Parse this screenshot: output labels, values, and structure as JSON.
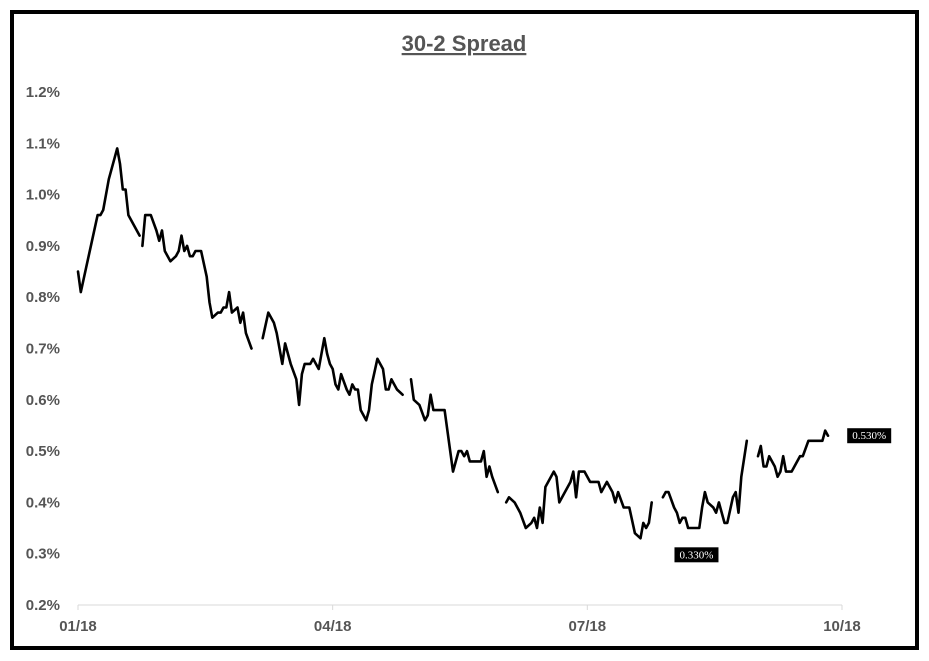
{
  "chart_data": {
    "type": "line",
    "title": "30-2 Spread",
    "xlabel": "",
    "ylabel": "",
    "ylim": [
      0.2,
      1.2
    ],
    "y_tick_labels": [
      "0.2%",
      "0.3%",
      "0.4%",
      "0.5%",
      "0.6%",
      "0.7%",
      "0.8%",
      "0.9%",
      "1.0%",
      "1.1%",
      "1.2%"
    ],
    "x_tick_labels": [
      "01/18",
      "04/18",
      "07/18",
      "10/18"
    ],
    "xlim": [
      "2018-01-01",
      "2018-10-01"
    ],
    "grid": false,
    "legend": "none",
    "line_color": "#000000",
    "axis_color": "#d9d9d9",
    "text_color": "#555555",
    "data_label_bg": "#000000",
    "data_labels": [
      {
        "date": "2018-08-10",
        "value": 0.33,
        "text": "0.330%"
      },
      {
        "date": "2018-09-30",
        "value": 0.53,
        "text": "0.530%"
      }
    ],
    "series": [
      {
        "segments": [
          [
            [
              "2018-01-01",
              0.85
            ],
            [
              "2018-01-02",
              0.81
            ],
            [
              "2018-01-04",
              0.86
            ],
            [
              "2018-01-06",
              0.91
            ],
            [
              "2018-01-08",
              0.96
            ],
            [
              "2018-01-09",
              0.96
            ],
            [
              "2018-01-10",
              0.97
            ],
            [
              "2018-01-12",
              1.03
            ],
            [
              "2018-01-14",
              1.07
            ],
            [
              "2018-01-15",
              1.09
            ],
            [
              "2018-01-16",
              1.06
            ],
            [
              "2018-01-17",
              1.01
            ],
            [
              "2018-01-18",
              1.01
            ],
            [
              "2018-01-19",
              0.96
            ],
            [
              "2018-01-21",
              0.94
            ],
            [
              "2018-01-23",
              0.92
            ]
          ],
          [
            [
              "2018-01-24",
              0.9
            ],
            [
              "2018-01-25",
              0.96
            ],
            [
              "2018-01-27",
              0.96
            ],
            [
              "2018-01-29",
              0.93
            ],
            [
              "2018-01-30",
              0.91
            ],
            [
              "2018-01-31",
              0.93
            ],
            [
              "2018-02-01",
              0.89
            ],
            [
              "2018-02-03",
              0.87
            ],
            [
              "2018-02-05",
              0.88
            ],
            [
              "2018-02-06",
              0.89
            ],
            [
              "2018-02-07",
              0.92
            ],
            [
              "2018-02-08",
              0.89
            ],
            [
              "2018-02-09",
              0.9
            ],
            [
              "2018-02-10",
              0.88
            ],
            [
              "2018-02-11",
              0.88
            ],
            [
              "2018-02-12",
              0.89
            ],
            [
              "2018-02-14",
              0.89
            ],
            [
              "2018-02-16",
              0.84
            ],
            [
              "2018-02-17",
              0.79
            ],
            [
              "2018-02-18",
              0.76
            ],
            [
              "2018-02-20",
              0.77
            ],
            [
              "2018-02-21",
              0.77
            ],
            [
              "2018-02-22",
              0.78
            ],
            [
              "2018-02-23",
              0.78
            ],
            [
              "2018-02-24",
              0.81
            ],
            [
              "2018-02-25",
              0.77
            ],
            [
              "2018-02-27",
              0.78
            ],
            [
              "2018-02-28",
              0.75
            ],
            [
              "2018-03-01",
              0.77
            ],
            [
              "2018-03-02",
              0.73
            ],
            [
              "2018-03-04",
              0.7
            ]
          ],
          [
            [
              "2018-03-08",
              0.72
            ],
            [
              "2018-03-10",
              0.77
            ],
            [
              "2018-03-12",
              0.75
            ],
            [
              "2018-03-13",
              0.73
            ],
            [
              "2018-03-15",
              0.67
            ],
            [
              "2018-03-16",
              0.71
            ],
            [
              "2018-03-18",
              0.67
            ],
            [
              "2018-03-20",
              0.64
            ],
            [
              "2018-03-21",
              0.59
            ],
            [
              "2018-03-22",
              0.65
            ],
            [
              "2018-03-23",
              0.67
            ],
            [
              "2018-03-25",
              0.67
            ],
            [
              "2018-03-26",
              0.68
            ],
            [
              "2018-03-27",
              0.67
            ],
            [
              "2018-03-28",
              0.66
            ],
            [
              "2018-03-30",
              0.72
            ],
            [
              "2018-03-31",
              0.69
            ],
            [
              "2018-04-01",
              0.67
            ],
            [
              "2018-04-02",
              0.66
            ],
            [
              "2018-04-03",
              0.63
            ],
            [
              "2018-04-04",
              0.62
            ],
            [
              "2018-04-05",
              0.65
            ],
            [
              "2018-04-07",
              0.62
            ],
            [
              "2018-04-08",
              0.61
            ],
            [
              "2018-04-09",
              0.63
            ],
            [
              "2018-04-10",
              0.62
            ],
            [
              "2018-04-11",
              0.62
            ],
            [
              "2018-04-12",
              0.58
            ],
            [
              "2018-04-14",
              0.56
            ],
            [
              "2018-04-15",
              0.58
            ],
            [
              "2018-04-16",
              0.63
            ],
            [
              "2018-04-18",
              0.68
            ],
            [
              "2018-04-20",
              0.66
            ],
            [
              "2018-04-21",
              0.62
            ],
            [
              "2018-04-22",
              0.62
            ],
            [
              "2018-04-23",
              0.64
            ],
            [
              "2018-04-25",
              0.62
            ],
            [
              "2018-04-27",
              0.61
            ]
          ],
          [
            [
              "2018-04-30",
              0.64
            ],
            [
              "2018-05-01",
              0.6
            ],
            [
              "2018-05-03",
              0.59
            ],
            [
              "2018-05-05",
              0.56
            ],
            [
              "2018-05-06",
              0.57
            ],
            [
              "2018-05-07",
              0.61
            ],
            [
              "2018-05-08",
              0.58
            ],
            [
              "2018-05-10",
              0.58
            ],
            [
              "2018-05-12",
              0.58
            ],
            [
              "2018-05-14",
              0.5
            ],
            [
              "2018-05-15",
              0.46
            ],
            [
              "2018-05-16",
              0.48
            ],
            [
              "2018-05-17",
              0.5
            ],
            [
              "2018-05-18",
              0.5
            ],
            [
              "2018-05-19",
              0.49
            ],
            [
              "2018-05-20",
              0.5
            ],
            [
              "2018-05-21",
              0.48
            ],
            [
              "2018-05-23",
              0.48
            ],
            [
              "2018-05-25",
              0.48
            ],
            [
              "2018-05-26",
              0.5
            ],
            [
              "2018-05-27",
              0.45
            ],
            [
              "2018-05-28",
              0.47
            ],
            [
              "2018-05-29",
              0.45
            ],
            [
              "2018-05-31",
              0.42
            ]
          ],
          [
            [
              "2018-06-01",
              0.43
            ]
          ],
          [
            [
              "2018-06-03",
              0.4
            ],
            [
              "2018-06-04",
              0.41
            ],
            [
              "2018-06-06",
              0.4
            ],
            [
              "2018-06-08",
              0.38
            ],
            [
              "2018-06-10",
              0.35
            ],
            [
              "2018-06-12",
              0.36
            ],
            [
              "2018-06-13",
              0.37
            ],
            [
              "2018-06-14",
              0.35
            ],
            [
              "2018-06-15",
              0.39
            ],
            [
              "2018-06-16",
              0.36
            ],
            [
              "2018-06-17",
              0.43
            ],
            [
              "2018-06-18",
              0.44
            ],
            [
              "2018-06-20",
              0.46
            ],
            [
              "2018-06-21",
              0.45
            ],
            [
              "2018-06-22",
              0.4
            ],
            [
              "2018-06-24",
              0.42
            ],
            [
              "2018-06-26",
              0.44
            ],
            [
              "2018-06-27",
              0.46
            ],
            [
              "2018-06-28",
              0.41
            ],
            [
              "2018-06-29",
              0.46
            ],
            [
              "2018-07-01",
              0.46
            ],
            [
              "2018-07-03",
              0.44
            ],
            [
              "2018-07-05",
              0.44
            ],
            [
              "2018-07-06",
              0.44
            ],
            [
              "2018-07-07",
              0.42
            ],
            [
              "2018-07-08",
              0.43
            ],
            [
              "2018-07-09",
              0.44
            ],
            [
              "2018-07-11",
              0.42
            ],
            [
              "2018-07-12",
              0.4
            ],
            [
              "2018-07-13",
              0.42
            ],
            [
              "2018-07-15",
              0.39
            ],
            [
              "2018-07-17",
              0.39
            ],
            [
              "2018-07-19",
              0.34
            ],
            [
              "2018-07-21",
              0.33
            ],
            [
              "2018-07-22",
              0.36
            ],
            [
              "2018-07-23",
              0.35
            ],
            [
              "2018-07-24",
              0.36
            ],
            [
              "2018-07-25",
              0.4
            ]
          ],
          [
            [
              "2018-07-29",
              0.41
            ],
            [
              "2018-07-30",
              0.42
            ],
            [
              "2018-07-31",
              0.42
            ],
            [
              "2018-08-02",
              0.39
            ],
            [
              "2018-08-03",
              0.38
            ],
            [
              "2018-08-04",
              0.36
            ],
            [
              "2018-08-05",
              0.37
            ],
            [
              "2018-08-06",
              0.37
            ],
            [
              "2018-08-07",
              0.35
            ],
            [
              "2018-08-09",
              0.35
            ],
            [
              "2018-08-11",
              0.35
            ],
            [
              "2018-08-12",
              0.39
            ],
            [
              "2018-08-13",
              0.42
            ],
            [
              "2018-08-14",
              0.4
            ],
            [
              "2018-08-16",
              0.39
            ],
            [
              "2018-08-17",
              0.38
            ],
            [
              "2018-08-18",
              0.4
            ],
            [
              "2018-08-20",
              0.36
            ],
            [
              "2018-08-21",
              0.36
            ],
            [
              "2018-08-23",
              0.41
            ],
            [
              "2018-08-24",
              0.42
            ],
            [
              "2018-08-25",
              0.38
            ],
            [
              "2018-08-26",
              0.45
            ],
            [
              "2018-08-28",
              0.52
            ]
          ],
          [
            [
              "2018-09-01",
              0.49
            ],
            [
              "2018-09-02",
              0.51
            ],
            [
              "2018-09-03",
              0.47
            ],
            [
              "2018-09-04",
              0.47
            ],
            [
              "2018-09-05",
              0.49
            ],
            [
              "2018-09-07",
              0.47
            ],
            [
              "2018-09-08",
              0.45
            ],
            [
              "2018-09-09",
              0.46
            ],
            [
              "2018-09-10",
              0.49
            ],
            [
              "2018-09-11",
              0.46
            ],
            [
              "2018-09-13",
              0.46
            ],
            [
              "2018-09-14",
              0.47
            ],
            [
              "2018-09-16",
              0.49
            ],
            [
              "2018-09-17",
              0.49
            ],
            [
              "2018-09-19",
              0.52
            ],
            [
              "2018-09-21",
              0.52
            ],
            [
              "2018-09-23",
              0.52
            ],
            [
              "2018-09-24",
              0.52
            ],
            [
              "2018-09-25",
              0.54
            ],
            [
              "2018-09-26",
              0.53
            ]
          ]
        ]
      }
    ]
  }
}
